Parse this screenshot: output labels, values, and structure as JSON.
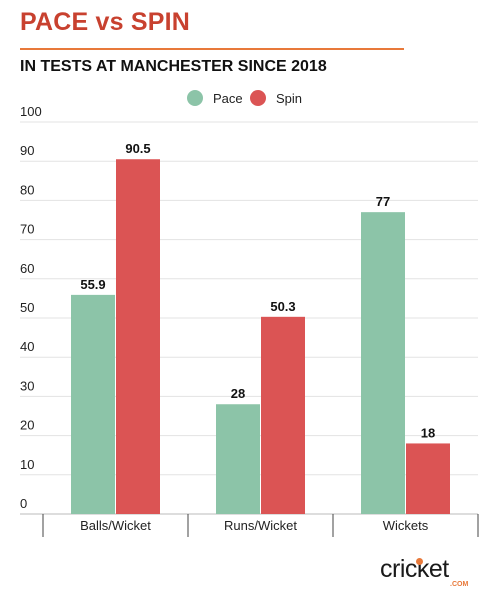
{
  "header": {
    "title": "PACE vs SPIN",
    "subtitle": "IN TESTS AT MANCHESTER SINCE 2018"
  },
  "brand": {
    "logo_text": "cricket",
    "logo_suffix": ".COM"
  },
  "colors": {
    "title": "#c8412f",
    "rule": "#e8793a",
    "pace": "#8cc4a8",
    "spin": "#db5454"
  },
  "chart_data": {
    "type": "bar",
    "title": "",
    "xlabel": "",
    "ylabel": "",
    "categories": [
      "Balls/Wicket",
      "Runs/Wicket",
      "Wickets"
    ],
    "series": [
      {
        "name": "Pace",
        "values": [
          55.9,
          28,
          77
        ],
        "color": "#8cc4a8"
      },
      {
        "name": "Spin",
        "values": [
          90.5,
          50.3,
          18
        ],
        "color": "#db5454"
      }
    ],
    "ylim": [
      0,
      100
    ],
    "yticks": [
      0,
      10,
      20,
      30,
      40,
      50,
      60,
      70,
      80,
      90,
      100
    ],
    "grid": true,
    "legend_position": "top-center",
    "data_labels": [
      "55.9",
      "90.5",
      "28",
      "50.3",
      "77",
      "18"
    ]
  }
}
